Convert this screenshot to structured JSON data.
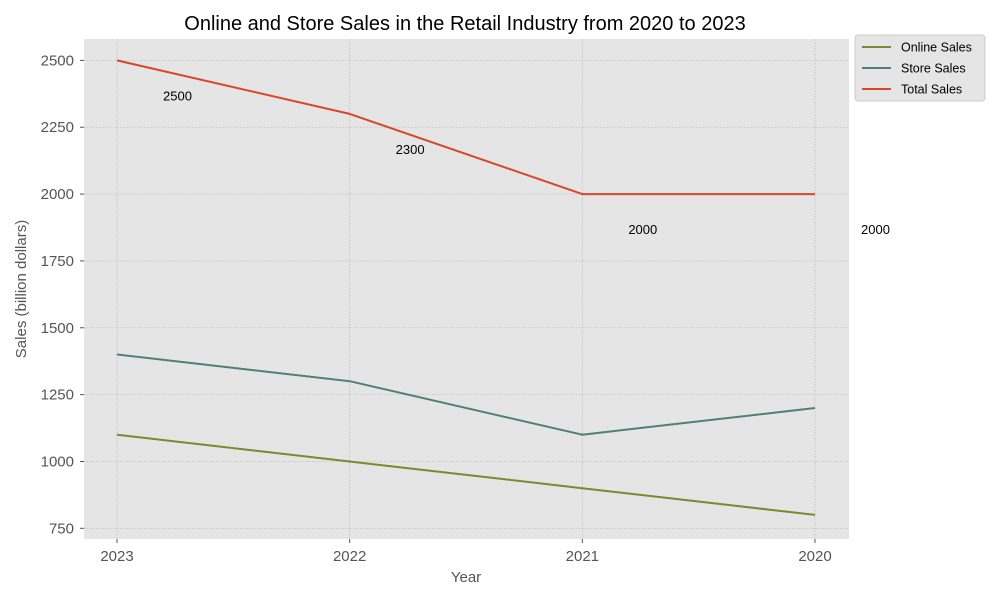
{
  "chart_data": {
    "type": "line",
    "title": "Online and Store Sales in the Retail Industry from 2020 to 2023",
    "xlabel": "Year",
    "ylabel": "Sales (billion dollars)",
    "categories": [
      "2023",
      "2022",
      "2021",
      "2020"
    ],
    "y_ticks": [
      750,
      1000,
      1250,
      1500,
      1750,
      2000,
      2250,
      2500
    ],
    "ylim": [
      710,
      2580
    ],
    "grid": true,
    "legend_position": "outside-top-right",
    "series": [
      {
        "name": "Online Sales",
        "color": "#7a8a2e",
        "values": [
          1100,
          1000,
          900,
          800
        ]
      },
      {
        "name": "Store Sales",
        "color": "#4f7f7a",
        "values": [
          1400,
          1300,
          1100,
          1200
        ]
      },
      {
        "name": "Total Sales",
        "color": "#d9472b",
        "values": [
          2500,
          2300,
          2000,
          2000
        ]
      }
    ],
    "annotations": [
      "2500",
      "2300",
      "2000",
      "2000"
    ]
  }
}
